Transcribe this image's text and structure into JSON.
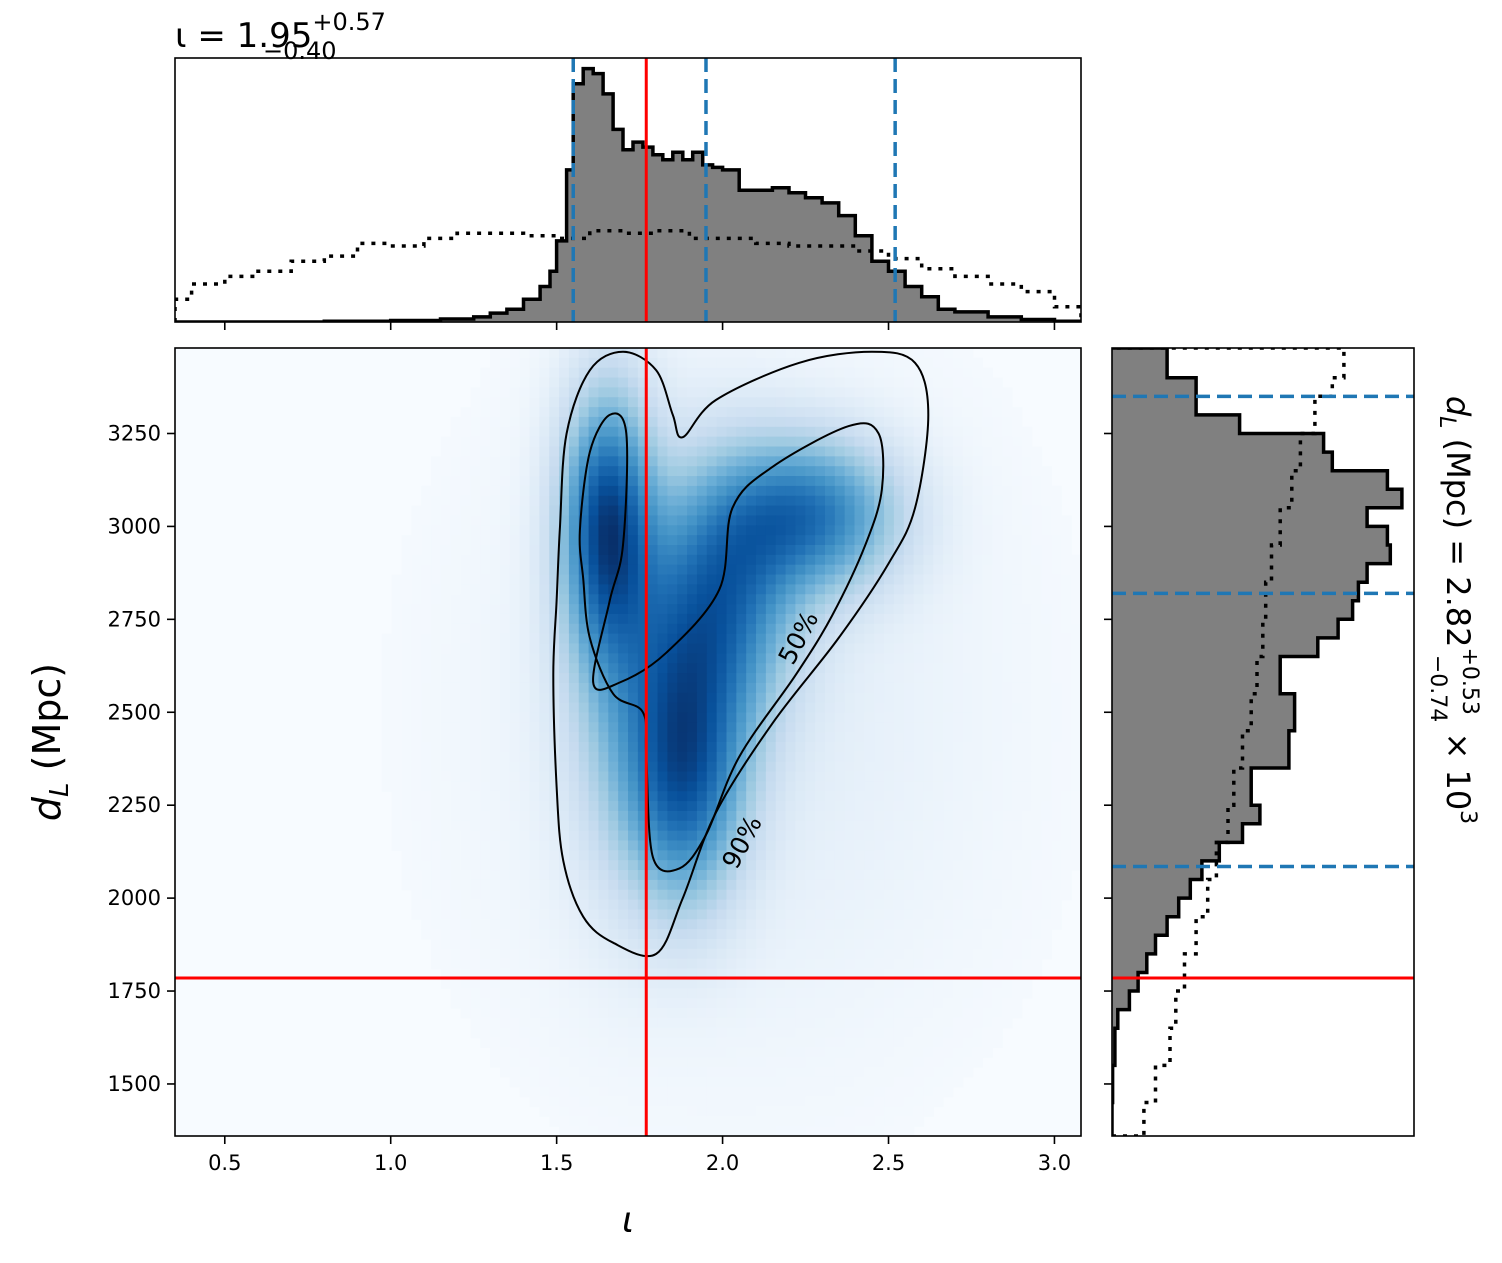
{
  "chart_data": [
    {
      "type": "histogram",
      "panel": "top-marginal",
      "title_param": "ι",
      "title_value": "1.95",
      "title_upper": "+0.57",
      "title_lower": "−0.40",
      "xlim": [
        0.35,
        3.08
      ],
      "x_ticks": [
        0.5,
        1.0,
        1.5,
        2.0,
        2.5,
        3.0
      ],
      "x_tick_labels": [
        "0.5",
        "1.0",
        "1.5",
        "2.0",
        "2.5",
        "3.0"
      ],
      "quantile_lines": [
        1.55,
        1.95,
        2.52
      ],
      "quantile_color": "#1f77b4",
      "injection_value": 1.77,
      "injection_color": "#ff0000",
      "posterior": {
        "edges": [
          0.35,
          0.8,
          1.0,
          1.15,
          1.25,
          1.3,
          1.35,
          1.4,
          1.45,
          1.48,
          1.5,
          1.53,
          1.55,
          1.58,
          1.61,
          1.64,
          1.67,
          1.7,
          1.73,
          1.76,
          1.79,
          1.82,
          1.85,
          1.88,
          1.91,
          1.94,
          1.97,
          2.0,
          2.05,
          2.1,
          2.15,
          2.2,
          2.25,
          2.3,
          2.35,
          2.4,
          2.45,
          2.5,
          2.55,
          2.6,
          2.65,
          2.7,
          2.8,
          2.9,
          3.0,
          3.08
        ],
        "heights": [
          0.0,
          0.003,
          0.006,
          0.012,
          0.02,
          0.035,
          0.05,
          0.09,
          0.14,
          0.2,
          0.32,
          0.6,
          0.94,
          1.0,
          0.98,
          0.9,
          0.76,
          0.68,
          0.71,
          0.69,
          0.66,
          0.64,
          0.67,
          0.64,
          0.67,
          0.62,
          0.61,
          0.6,
          0.52,
          0.52,
          0.53,
          0.51,
          0.49,
          0.47,
          0.42,
          0.34,
          0.24,
          0.2,
          0.14,
          0.1,
          0.05,
          0.04,
          0.02,
          0.01,
          0.003
        ],
        "fill": "#808080"
      },
      "prior": {
        "edges": [
          0.35,
          0.4,
          0.5,
          0.6,
          0.7,
          0.8,
          0.9,
          1.0,
          1.1,
          1.2,
          1.3,
          1.4,
          1.5,
          1.6,
          1.7,
          1.8,
          1.9,
          2.0,
          2.1,
          2.2,
          2.3,
          2.4,
          2.5,
          2.6,
          2.7,
          2.8,
          2.9,
          3.0,
          3.08
        ],
        "heights": [
          0.09,
          0.15,
          0.18,
          0.2,
          0.24,
          0.26,
          0.31,
          0.3,
          0.33,
          0.35,
          0.35,
          0.34,
          0.33,
          0.36,
          0.35,
          0.36,
          0.33,
          0.33,
          0.31,
          0.3,
          0.3,
          0.28,
          0.25,
          0.21,
          0.18,
          0.15,
          0.12,
          0.06
        ]
      }
    },
    {
      "type": "heatmap",
      "panel": "joint",
      "xlabel": "ι",
      "ylabel": "d_L (Mpc)",
      "ylabel_main": "d",
      "ylabel_sub": "L",
      "ylabel_unit": " (Mpc)",
      "xlim": [
        0.35,
        3.08
      ],
      "ylim": [
        1360,
        3480
      ],
      "y_ticks": [
        1500,
        1750,
        2000,
        2250,
        2500,
        2750,
        3000,
        3250
      ],
      "y_tick_labels": [
        "1500",
        "1750",
        "2000",
        "2250",
        "2500",
        "2750",
        "3000",
        "3250"
      ],
      "colormap": "Blues",
      "density_modes": [
        {
          "x": 1.65,
          "y": 3010,
          "sx": 0.09,
          "sy": 230,
          "weight": 1.0
        },
        {
          "x": 2.27,
          "y": 3030,
          "sx": 0.18,
          "sy": 140,
          "weight": 0.85
        },
        {
          "x": 2.02,
          "y": 2850,
          "sx": 0.15,
          "sy": 230,
          "weight": 0.7
        },
        {
          "x": 1.88,
          "y": 2280,
          "sx": 0.12,
          "sy": 220,
          "weight": 0.75
        },
        {
          "x": 1.9,
          "y": 2580,
          "sx": 0.14,
          "sy": 250,
          "weight": 0.6
        },
        {
          "x": 1.68,
          "y": 2700,
          "sx": 0.12,
          "sy": 400,
          "weight": 0.35
        },
        {
          "x": 2.05,
          "y": 2500,
          "sx": 0.5,
          "sy": 600,
          "weight": 0.1
        }
      ],
      "contours": [
        {
          "label": "50%",
          "label_at": [
            2.23,
            2700
          ],
          "label_angle": -62,
          "points": [
            [
              1.57,
              2990
            ],
            [
              1.6,
              3200
            ],
            [
              1.66,
              3300
            ],
            [
              1.71,
              3250
            ],
            [
              1.7,
              2950
            ],
            [
              1.66,
              2800
            ],
            [
              1.61,
              2580
            ],
            [
              1.69,
              2580
            ],
            [
              1.83,
              2660
            ],
            [
              1.99,
              2830
            ],
            [
              2.03,
              3050
            ],
            [
              2.15,
              3160
            ],
            [
              2.38,
              3270
            ],
            [
              2.47,
              3250
            ],
            [
              2.48,
              3100
            ],
            [
              2.43,
              2950
            ],
            [
              2.33,
              2760
            ],
            [
              2.22,
              2600
            ],
            [
              2.05,
              2380
            ],
            [
              1.95,
              2170
            ],
            [
              1.87,
              2080
            ],
            [
              1.79,
              2110
            ],
            [
              1.77,
              2380
            ],
            [
              1.76,
              2500
            ],
            [
              1.67,
              2550
            ],
            [
              1.6,
              2700
            ],
            [
              1.58,
              2860
            ]
          ]
        },
        {
          "label": "90%",
          "label_at": [
            2.06,
            2150
          ],
          "label_angle": -62,
          "points": [
            [
              1.51,
              3000
            ],
            [
              1.53,
              3250
            ],
            [
              1.6,
              3420
            ],
            [
              1.7,
              3470
            ],
            [
              1.8,
              3420
            ],
            [
              1.85,
              3300
            ],
            [
              1.88,
              3240
            ],
            [
              1.98,
              3340
            ],
            [
              2.23,
              3440
            ],
            [
              2.45,
              3470
            ],
            [
              2.58,
              3440
            ],
            [
              2.62,
              3300
            ],
            [
              2.58,
              3050
            ],
            [
              2.5,
              2900
            ],
            [
              2.35,
              2700
            ],
            [
              2.15,
              2470
            ],
            [
              1.98,
              2230
            ],
            [
              1.88,
              2000
            ],
            [
              1.8,
              1850
            ],
            [
              1.67,
              1880
            ],
            [
              1.58,
              1950
            ],
            [
              1.52,
              2100
            ],
            [
              1.5,
              2300
            ],
            [
              1.49,
              2600
            ],
            [
              1.5,
              2800
            ]
          ]
        }
      ],
      "injection": {
        "x": 1.77,
        "y": 1785
      },
      "injection_color": "#ff0000"
    },
    {
      "type": "histogram",
      "panel": "right-marginal",
      "orientation": "horizontal",
      "label_main": "d",
      "label_sub": "L",
      "label_mid": " (Mpc) = 2.82",
      "label_upper": "+0.53",
      "label_lower": "−0.74",
      "label_tail": " × 10",
      "label_exp": "3",
      "ylim": [
        1360,
        3480
      ],
      "quantile_lines": [
        2085,
        2820,
        3350
      ],
      "quantile_color": "#1f77b4",
      "injection_value": 1785,
      "injection_color": "#ff0000",
      "posterior": {
        "edges": [
          1360,
          1450,
          1550,
          1650,
          1700,
          1750,
          1800,
          1850,
          1900,
          1950,
          2000,
          2050,
          2100,
          2150,
          2200,
          2250,
          2350,
          2450,
          2550,
          2650,
          2700,
          2750,
          2800,
          2850,
          2900,
          2950,
          3000,
          3050,
          3100,
          3150,
          3200,
          3250,
          3300,
          3350,
          3400,
          3480
        ],
        "heights": [
          0.0,
          0.002,
          0.01,
          0.02,
          0.06,
          0.09,
          0.12,
          0.15,
          0.19,
          0.23,
          0.27,
          0.31,
          0.37,
          0.45,
          0.51,
          0.48,
          0.61,
          0.63,
          0.58,
          0.71,
          0.78,
          0.83,
          0.85,
          0.88,
          0.96,
          0.95,
          0.88,
          1.0,
          0.95,
          0.76,
          0.73,
          0.44,
          0.29,
          0.29,
          0.19
        ]
      },
      "prior": {
        "edges": [
          1360,
          1450,
          1550,
          1650,
          1750,
          1850,
          1950,
          2050,
          2150,
          2250,
          2350,
          2450,
          2550,
          2650,
          2750,
          2850,
          2950,
          3050,
          3150,
          3250,
          3350,
          3400,
          3480
        ],
        "heights": [
          0.11,
          0.15,
          0.2,
          0.22,
          0.25,
          0.29,
          0.33,
          0.36,
          0.4,
          0.42,
          0.45,
          0.48,
          0.5,
          0.52,
          0.53,
          0.55,
          0.58,
          0.62,
          0.65,
          0.7,
          0.76,
          0.8
        ]
      }
    }
  ]
}
